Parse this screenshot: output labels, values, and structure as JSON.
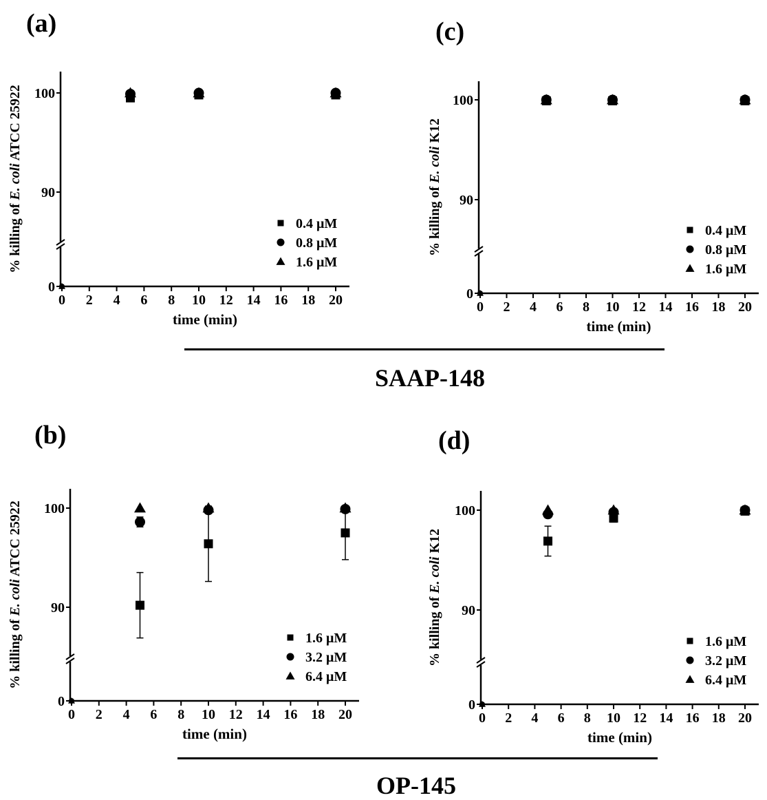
{
  "groups": [
    {
      "label": "SAAP-148"
    },
    {
      "label": "OP-145"
    }
  ],
  "chart_data": [
    {
      "panel": "(a)",
      "type": "scatter",
      "xlabel": "time (min)",
      "ylabel_parts": [
        "% killing of ",
        "E. coli",
        " ATCC 25922"
      ],
      "x_ticks": [
        0,
        2,
        4,
        6,
        8,
        10,
        12,
        14,
        16,
        18,
        20
      ],
      "y_ticks": [
        0,
        90,
        100
      ],
      "broken_y_axis": true,
      "ylim_upper_segment": [
        86,
        102
      ],
      "legend_position": "lower-right",
      "series": [
        {
          "name": "0.4 μM",
          "marker": "square",
          "x": [
            0,
            5,
            10,
            20
          ],
          "y": [
            0,
            99.5,
            99.8,
            99.8
          ],
          "err": [
            0,
            0.3,
            0.2,
            0.2
          ]
        },
        {
          "name": "0.8 μM",
          "marker": "circle",
          "x": [
            0,
            5,
            10,
            20
          ],
          "y": [
            0,
            99.9,
            100,
            100
          ],
          "err": [
            0,
            0,
            0,
            0
          ]
        },
        {
          "name": "1.6 μM",
          "marker": "triangle",
          "x": [
            0,
            5,
            10,
            20
          ],
          "y": [
            0,
            100,
            100,
            100
          ],
          "err": [
            0,
            0,
            0,
            0
          ]
        }
      ]
    },
    {
      "panel": "(c)",
      "type": "scatter",
      "xlabel": "time (min)",
      "ylabel_parts": [
        "% killing of ",
        "E. coli",
        " K12"
      ],
      "x_ticks": [
        0,
        2,
        4,
        6,
        8,
        10,
        12,
        14,
        16,
        18,
        20
      ],
      "y_ticks": [
        0,
        90,
        100
      ],
      "broken_y_axis": true,
      "ylim_upper_segment": [
        86,
        102
      ],
      "legend_position": "lower-right",
      "series": [
        {
          "name": "0.4 μM",
          "marker": "square",
          "x": [
            0,
            5,
            10,
            20
          ],
          "y": [
            0,
            99.9,
            99.9,
            99.9
          ],
          "err": [
            0,
            0.1,
            0.1,
            0.1
          ]
        },
        {
          "name": "0.8 μM",
          "marker": "circle",
          "x": [
            0,
            5,
            10,
            20
          ],
          "y": [
            0,
            100,
            100,
            100
          ],
          "err": [
            0,
            0,
            0,
            0
          ]
        },
        {
          "name": "1.6 μM",
          "marker": "triangle",
          "x": [
            0,
            5,
            10,
            20
          ],
          "y": [
            0,
            100,
            100,
            100
          ],
          "err": [
            0,
            0,
            0,
            0
          ]
        }
      ]
    },
    {
      "panel": "(b)",
      "type": "scatter",
      "xlabel": "time (min)",
      "ylabel_parts": [
        "%  killing of ",
        "E. coli",
        " ATCC 25922"
      ],
      "x_ticks": [
        0,
        2,
        4,
        6,
        8,
        10,
        12,
        14,
        16,
        18,
        20
      ],
      "y_ticks": [
        0,
        90,
        100
      ],
      "broken_y_axis": true,
      "ylim_upper_segment": [
        86,
        102
      ],
      "legend_position": "lower-right",
      "series": [
        {
          "name": "1.6 μM",
          "marker": "square",
          "x": [
            0,
            5,
            10,
            20
          ],
          "y": [
            0,
            90.2,
            96.4,
            97.5
          ],
          "err": [
            0,
            3.3,
            3.8,
            2.7
          ]
        },
        {
          "name": "3.2 μM",
          "marker": "circle",
          "x": [
            0,
            5,
            10,
            20
          ],
          "y": [
            0,
            98.6,
            99.8,
            99.9
          ],
          "err": [
            0,
            0.5,
            0.1,
            0.1
          ]
        },
        {
          "name": "6.4 μM",
          "marker": "triangle",
          "x": [
            0,
            5,
            10,
            20
          ],
          "y": [
            0,
            100,
            100,
            100
          ],
          "err": [
            0,
            0,
            0,
            0
          ]
        }
      ]
    },
    {
      "panel": "(d)",
      "type": "scatter",
      "xlabel": "time (min)",
      "ylabel_parts": [
        "% killing of ",
        "E. coli",
        " K12"
      ],
      "x_ticks": [
        0,
        2,
        4,
        6,
        8,
        10,
        12,
        14,
        16,
        18,
        20
      ],
      "y_ticks": [
        0,
        90,
        100
      ],
      "broken_y_axis": true,
      "ylim_upper_segment": [
        86,
        102
      ],
      "legend_position": "lower-right",
      "series": [
        {
          "name": "1.6 μM",
          "marker": "square",
          "x": [
            0,
            5,
            10,
            20
          ],
          "y": [
            0,
            96.9,
            99.2,
            99.9
          ],
          "err": [
            0,
            1.5,
            0.4,
            0.1
          ]
        },
        {
          "name": "3.2 μM",
          "marker": "circle",
          "x": [
            0,
            5,
            10,
            20
          ],
          "y": [
            0,
            99.6,
            99.8,
            100
          ],
          "err": [
            0,
            0.2,
            0.1,
            0
          ]
        },
        {
          "name": "6.4 μM",
          "marker": "triangle",
          "x": [
            0,
            5,
            10,
            20
          ],
          "y": [
            0,
            100,
            100,
            100
          ],
          "err": [
            0,
            0,
            0,
            0
          ]
        }
      ]
    }
  ]
}
